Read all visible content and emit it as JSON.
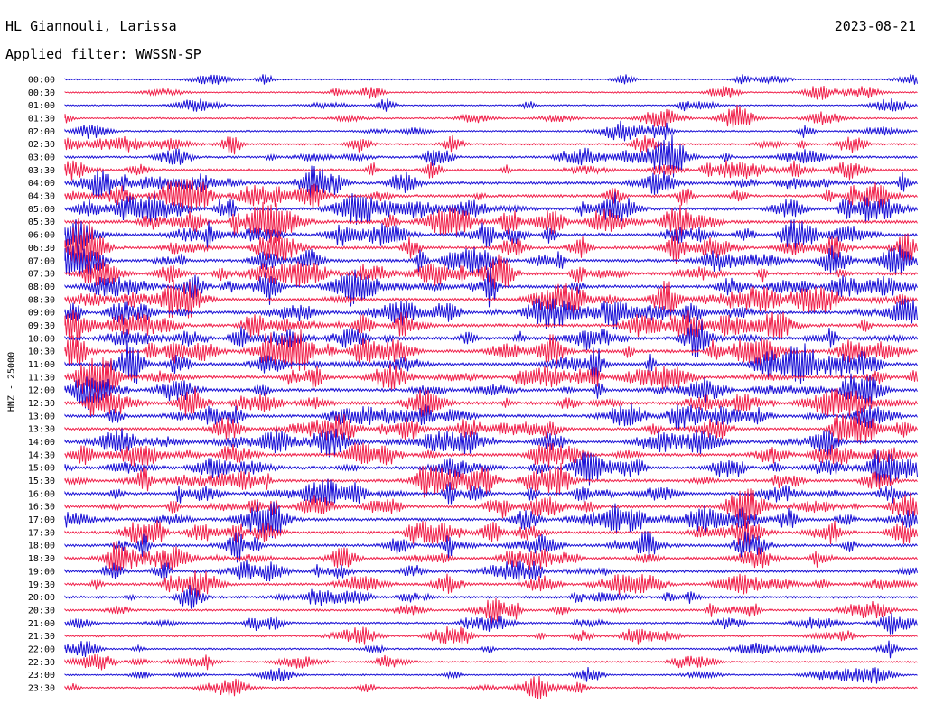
{
  "header": {
    "station": "HL Giannouli, Larissa",
    "date": "2023-08-21",
    "filter": "Applied filter: WWSSN-SP"
  },
  "chart_data": {
    "type": "line",
    "channel_label": "HNZ - 25000",
    "colors": {
      "blue": "#1a10d6",
      "red": "#f0204a"
    },
    "row_times": [
      "00:00",
      "00:30",
      "01:00",
      "01:30",
      "02:00",
      "02:30",
      "03:00",
      "03:30",
      "04:00",
      "04:30",
      "05:00",
      "05:30",
      "06:00",
      "06:30",
      "07:00",
      "07:30",
      "08:00",
      "08:30",
      "09:00",
      "09:30",
      "10:00",
      "10:30",
      "11:00",
      "11:30",
      "12:00",
      "12:30",
      "13:00",
      "13:30",
      "14:00",
      "14:30",
      "15:00",
      "15:30",
      "16:00",
      "16:30",
      "17:00",
      "17:30",
      "18:00",
      "18:30",
      "19:00",
      "19:30",
      "20:00",
      "20:30",
      "21:00",
      "21:30",
      "22:00",
      "22:30",
      "23:00",
      "23:30"
    ],
    "row_activity": [
      0.15,
      0.2,
      0.2,
      0.3,
      0.3,
      0.4,
      0.55,
      0.6,
      0.75,
      0.75,
      0.8,
      0.85,
      0.85,
      0.8,
      0.85,
      0.8,
      0.85,
      0.85,
      0.85,
      0.85,
      0.9,
      0.9,
      0.9,
      0.85,
      0.85,
      0.85,
      0.8,
      0.75,
      0.8,
      0.85,
      0.85,
      0.75,
      0.75,
      0.75,
      0.8,
      0.75,
      0.75,
      0.7,
      0.7,
      0.65,
      0.6,
      0.45,
      0.4,
      0.35,
      0.3,
      0.3,
      0.25,
      0.25
    ]
  }
}
